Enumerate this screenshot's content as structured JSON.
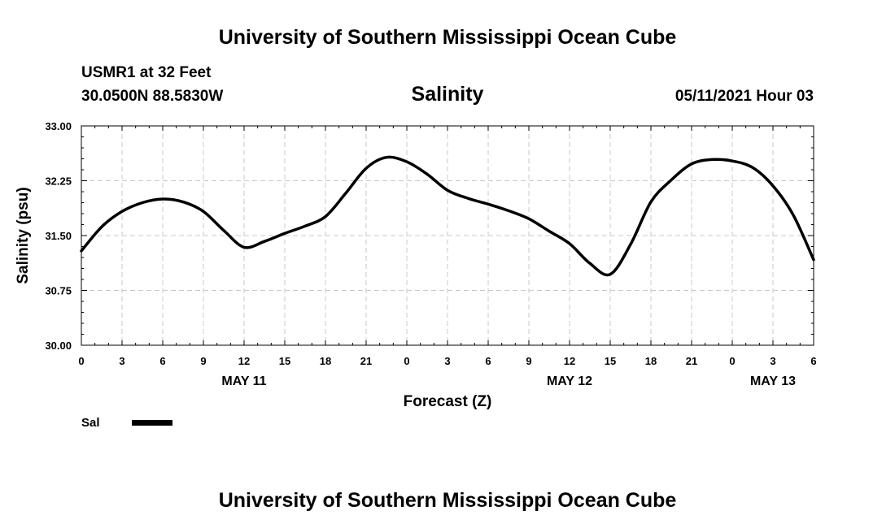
{
  "header": {
    "title": "University of Southern Mississippi Ocean Cube",
    "station": "USMR1 at 32 Feet",
    "coords": "30.0500N  88.5830W",
    "datetime": "05/11/2021 Hour 03"
  },
  "footer": {
    "title": "University of Southern Mississippi Ocean Cube"
  },
  "chart_data": {
    "type": "line",
    "title": "Salinity",
    "xlabel": "Forecast (Z)",
    "ylabel": "Salinity (psu)",
    "xlim": [
      0,
      54
    ],
    "ylim": [
      30.0,
      33.0
    ],
    "grid": true,
    "x_tick_labels": [
      "0",
      "3",
      "6",
      "9",
      "12",
      "15",
      "18",
      "21",
      "0",
      "3",
      "6",
      "9",
      "12",
      "15",
      "18",
      "21",
      "0",
      "3",
      "6"
    ],
    "y_tick_labels": [
      "30.00",
      "30.75",
      "31.50",
      "32.25",
      "33.00"
    ],
    "day_labels": [
      {
        "label": "MAY 11",
        "x": 12
      },
      {
        "label": "MAY 12",
        "x": 36
      },
      {
        "label": "MAY 13",
        "x": 51
      }
    ],
    "legend": {
      "position": "bottom-left",
      "label": "Sal"
    },
    "series": [
      {
        "name": "Sal",
        "color": "#000000",
        "x": [
          0,
          1.5,
          3,
          4.5,
          6,
          7.5,
          9,
          10.5,
          12,
          13.5,
          15,
          16.5,
          18,
          19.5,
          21,
          22.5,
          24,
          25.5,
          27,
          28.5,
          30,
          31.5,
          33,
          34.5,
          36,
          37.5,
          39,
          40.5,
          42,
          43.5,
          45,
          46.5,
          48,
          49.5,
          51,
          52.5,
          54
        ],
        "values": [
          31.29,
          31.62,
          31.83,
          31.95,
          32.0,
          31.96,
          31.83,
          31.57,
          31.34,
          31.42,
          31.53,
          31.63,
          31.76,
          32.08,
          32.42,
          32.57,
          32.51,
          32.34,
          32.12,
          32.01,
          31.93,
          31.84,
          31.73,
          31.56,
          31.39,
          31.12,
          30.97,
          31.38,
          31.96,
          32.26,
          32.48,
          32.54,
          32.52,
          32.43,
          32.18,
          31.78,
          31.17
        ]
      }
    ]
  }
}
